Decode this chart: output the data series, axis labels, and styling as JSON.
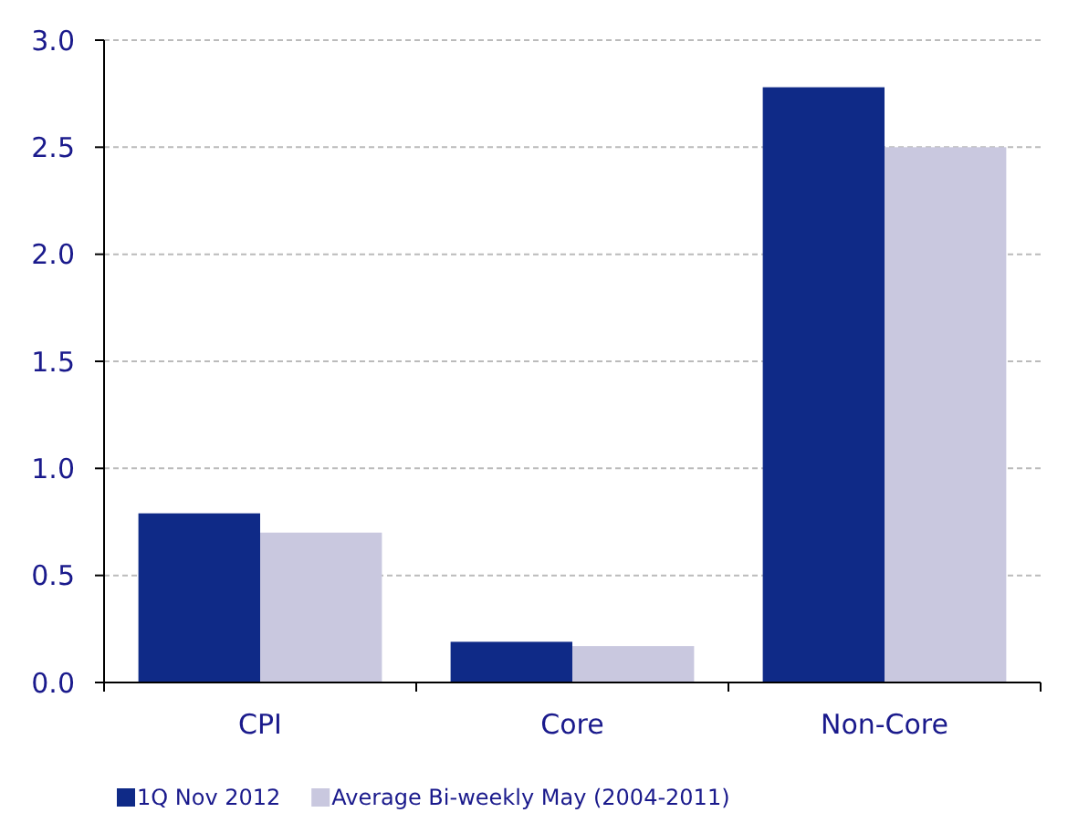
{
  "chart_data": {
    "type": "bar",
    "categories": [
      "CPI",
      "Core",
      "Non-Core"
    ],
    "series": [
      {
        "name": "1Q Nov 2012",
        "color": "#0f2a87",
        "values": [
          0.79,
          0.19,
          2.78
        ]
      },
      {
        "name": "Average Bi-weekly May (2004-2011)",
        "color": "#c9c8df",
        "values": [
          0.7,
          0.17,
          2.5
        ]
      }
    ],
    "ylim": [
      0,
      3
    ],
    "yticks": [
      {
        "value": 0,
        "label": "0.0"
      },
      0.5,
      {
        "value": 1,
        "label": "1.0"
      },
      1.5,
      {
        "value": 2,
        "label": "2.0"
      },
      2.5,
      {
        "value": 3,
        "label": "3.0"
      }
    ],
    "grid": "y",
    "legend": "bottom"
  }
}
